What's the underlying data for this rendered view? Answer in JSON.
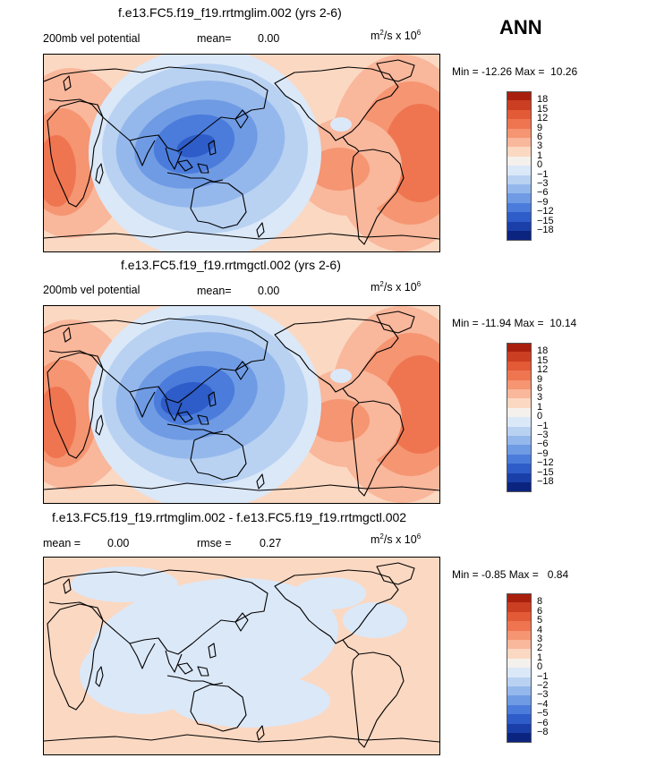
{
  "season": "ANN",
  "colors": {
    "pos": [
      "#fbd8c2",
      "#f9b79b",
      "#f59572",
      "#ef7551",
      "#e35a36",
      "#cc3e22",
      "#a8200d"
    ],
    "neutral": "#f4f0ec",
    "neg": [
      "#dbe8f8",
      "#b9d2f2",
      "#95b8ec",
      "#6f9be4",
      "#4b7cdb",
      "#2e5cc8",
      "#1a3fa8",
      "#0b2480"
    ]
  },
  "panels": [
    {
      "title": "f.e13.FC5.f19_f19.rrtmglim.002 (yrs 2-6)",
      "left_label": "200mb vel potential",
      "mean_label": "mean=",
      "mean_value": "0.00",
      "units_prefix": "m",
      "units_exp": "2",
      "units_mid": "/s x 10",
      "units_exp2": "6",
      "min_label": "Min =",
      "min_value": "-12.26",
      "max_label": "Max =",
      "max_value": "10.26",
      "levels": [
        "18",
        "15",
        "12",
        "9",
        "6",
        "3",
        "1",
        "0",
        "−1",
        "−3",
        "−6",
        "−9",
        "−12",
        "−15",
        "−18"
      ]
    },
    {
      "title": "f.e13.FC5.f19_f19.rrtmgctl.002 (yrs 2-6)",
      "left_label": "200mb vel potential",
      "mean_label": "mean=",
      "mean_value": "0.00",
      "units_prefix": "m",
      "units_exp": "2",
      "units_mid": "/s x 10",
      "units_exp2": "6",
      "min_label": "Min =",
      "min_value": "-11.94",
      "max_label": "Max =",
      "max_value": "10.14",
      "levels": [
        "18",
        "15",
        "12",
        "9",
        "6",
        "3",
        "1",
        "0",
        "−1",
        "−3",
        "−6",
        "−9",
        "−12",
        "−15",
        "−18"
      ]
    },
    {
      "title": "f.e13.FC5.f19_f19.rrtmglim.002 - f.e13.FC5.f19_f19.rrtmgctl.002",
      "left_label": "mean =",
      "left_value": "0.00",
      "mean_label": "rmse =",
      "mean_value": "0.27",
      "units_prefix": "m",
      "units_exp": "2",
      "units_mid": "/s x 10",
      "units_exp2": "6",
      "min_label": "Min =",
      "min_value": "-0.85",
      "max_label": "Max =",
      "max_value": "0.84",
      "levels": [
        "8",
        "6",
        "5",
        "4",
        "3",
        "2",
        "1",
        "0",
        "−1",
        "−2",
        "−3",
        "−4",
        "−5",
        "−6",
        "−8"
      ]
    }
  ]
}
